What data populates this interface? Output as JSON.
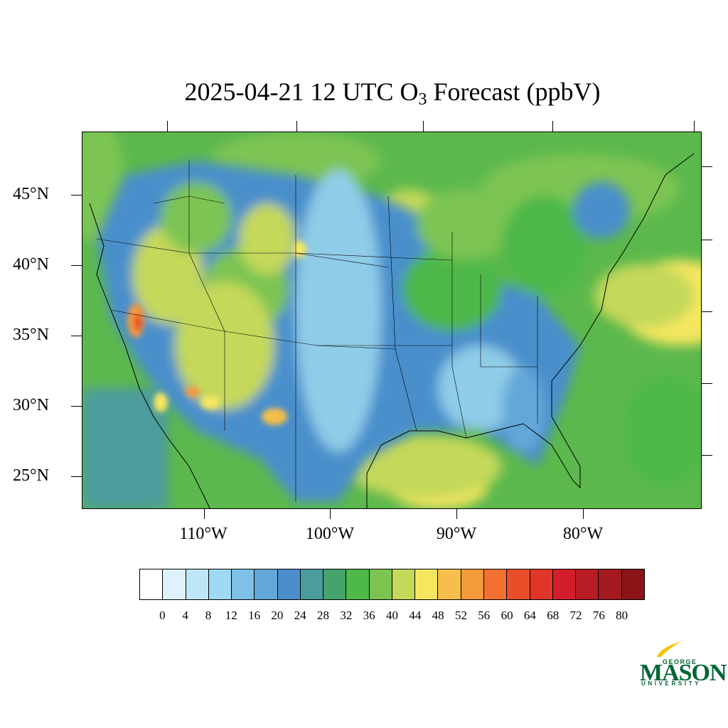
{
  "title": {
    "prefix": "2025-04-21 12 UTC O",
    "subscript": "3",
    "suffix": " Forecast (ppbV)"
  },
  "map": {
    "region": "Contiguous United States",
    "background_color": "#5cb84c",
    "land_colors": [
      "#4a8fcc",
      "#8fcce8",
      "#4eb848",
      "#7cc452",
      "#c4d85a",
      "#f5e660",
      "#f7a840",
      "#e43a2a"
    ]
  },
  "lat_labels": [
    "45°N",
    "40°N",
    "35°N",
    "30°N",
    "25°N"
  ],
  "lon_labels": [
    "110°W",
    "100°W",
    "90°W",
    "80°W"
  ],
  "colorbar": {
    "colors": [
      "#ffffff",
      "#dff1fb",
      "#bfe6f7",
      "#9fd9f4",
      "#7fc0e6",
      "#63a7d9",
      "#4a8fcc",
      "#4b9c9c",
      "#45a36c",
      "#4eb848",
      "#7cc452",
      "#c4d85a",
      "#f5e660",
      "#f6be4a",
      "#f59a3a",
      "#f27130",
      "#e84e2a",
      "#e03528",
      "#d11e2a",
      "#b81c25",
      "#a3191f",
      "#8a1418"
    ],
    "labels": [
      "0",
      "4",
      "8",
      "12",
      "16",
      "20",
      "24",
      "28",
      "32",
      "36",
      "40",
      "44",
      "48",
      "52",
      "56",
      "60",
      "64",
      "68",
      "72",
      "76",
      "80"
    ]
  },
  "logo": {
    "line1": "GEORGE",
    "line2": "MASON",
    "line3": "UNIVERSITY",
    "color": "#006633",
    "accent": "#f4c300"
  }
}
